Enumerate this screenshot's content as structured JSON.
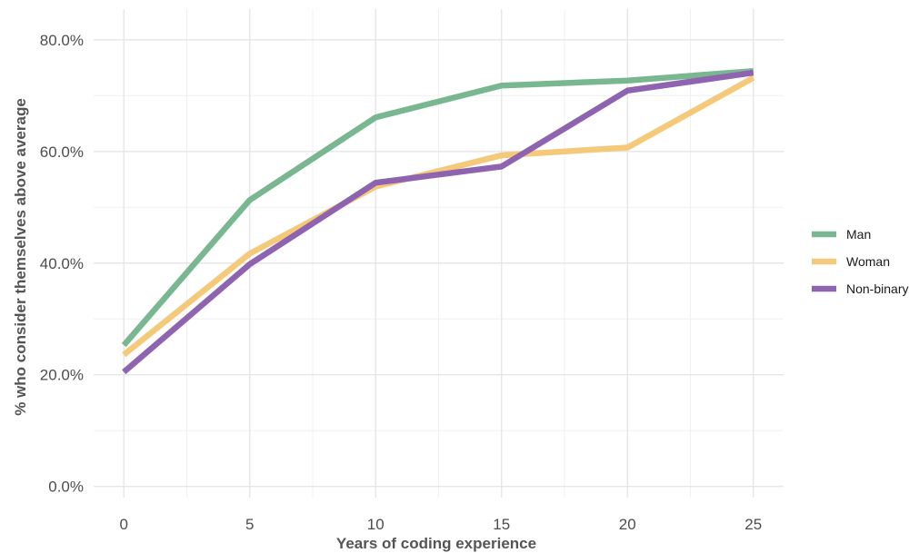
{
  "chart_data": {
    "type": "line",
    "xlabel": "Years of coding experience",
    "ylabel": "% who consider themselves above average",
    "x": [
      0,
      5,
      10,
      15,
      20,
      25
    ],
    "xlim": [
      -1.2,
      26.2
    ],
    "ylim": [
      -0.02,
      0.855
    ],
    "y_tick_values": [
      0,
      0.2,
      0.4,
      0.6,
      0.8
    ],
    "y_tick_labels": [
      "0.0%",
      "20.0%",
      "40.0%",
      "60.0%",
      "80.0%"
    ],
    "x_tick_values": [
      0,
      5,
      10,
      15,
      20,
      25
    ],
    "x_tick_labels": [
      "0",
      "5",
      "10",
      "15",
      "20",
      "25"
    ],
    "grid": true,
    "legend_position": "right",
    "series": [
      {
        "name": "Man",
        "color": "#79b791",
        "values": [
          0.253,
          0.513,
          0.661,
          0.718,
          0.727,
          0.744
        ]
      },
      {
        "name": "Woman",
        "color": "#f5c97a",
        "values": [
          0.236,
          0.417,
          0.537,
          0.593,
          0.607,
          0.732
        ]
      },
      {
        "name": "Non-binary",
        "color": "#8e63b0",
        "values": [
          0.205,
          0.398,
          0.544,
          0.573,
          0.709,
          0.741
        ]
      }
    ]
  }
}
